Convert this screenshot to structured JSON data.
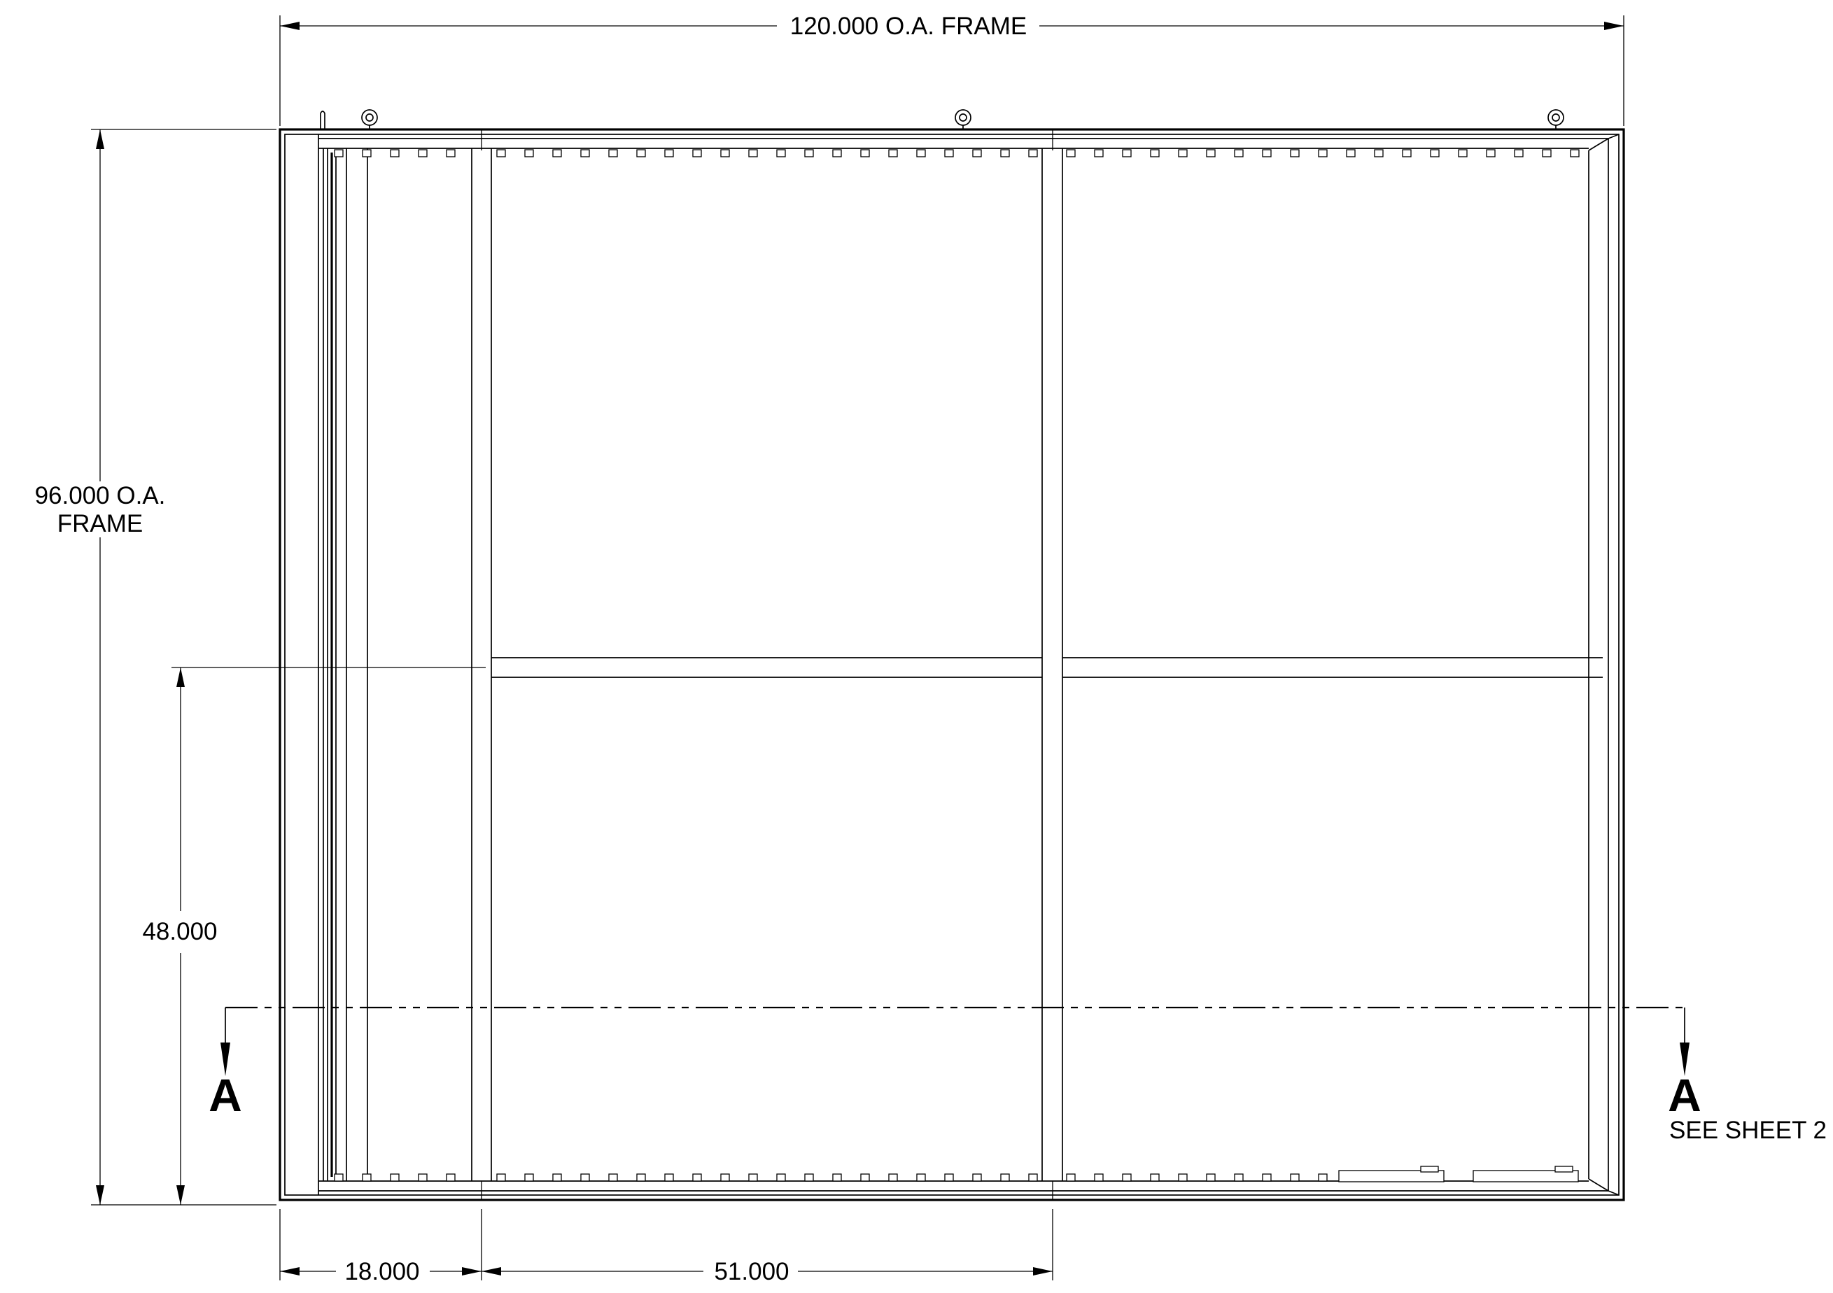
{
  "dimensions": {
    "overall_width": "120.000 O.A. FRAME",
    "overall_height_line1": "96.000 O.A.",
    "overall_height_line2": "FRAME",
    "mid_height": "48.000",
    "left_bay": "18.000",
    "center_bay": "51.000"
  },
  "section": {
    "marker_left": "A",
    "marker_right": "A",
    "note": "SEE SHEET 2"
  }
}
